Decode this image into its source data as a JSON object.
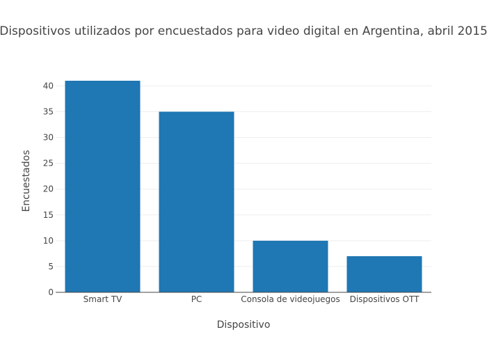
{
  "chart_data": {
    "type": "bar",
    "title": "Dispositivos utilizados por encuestados para video digital en Argentina, abril 2015",
    "xlabel": "Dispositivo",
    "ylabel": "Encuestados",
    "categories": [
      "Smart TV",
      "PC",
      "Consola de videojuegos",
      "Dispositivos OTT"
    ],
    "values": [
      41,
      35,
      10,
      7
    ],
    "ylim": [
      0,
      41
    ],
    "yticks": [
      0,
      5,
      10,
      15,
      20,
      25,
      30,
      35,
      40
    ],
    "grid": true,
    "bar_color": "#1f77b4"
  }
}
